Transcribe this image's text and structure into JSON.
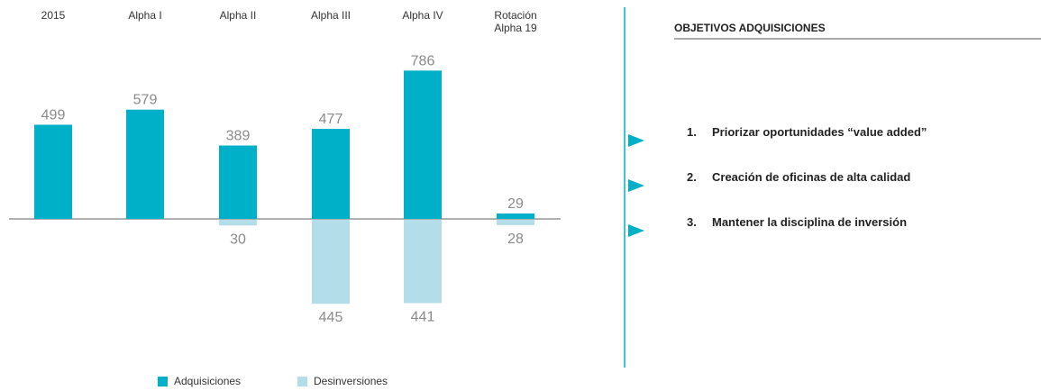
{
  "chart_data": {
    "type": "bar",
    "categories": [
      "2015",
      "Alpha I",
      "Alpha II",
      "Alpha III",
      "Alpha IV",
      "Rotación Alpha 19"
    ],
    "series": [
      {
        "name": "Adquisiciones",
        "color": "#00b0c8",
        "values": [
          499,
          579,
          389,
          477,
          786,
          29
        ]
      },
      {
        "name": "Desinversiones",
        "color": "#b3dde9",
        "values": [
          null,
          null,
          30,
          445,
          441,
          28
        ]
      }
    ]
  },
  "panel": {
    "title": "OBJETIVOS ADQUISICIONES",
    "items": [
      {
        "number": "1.",
        "text": "Priorizar oportunidades “value added”"
      },
      {
        "number": "2.",
        "text": "Creación de oficinas de alta calidad"
      },
      {
        "number": "3.",
        "text": "Mantener la disciplina de inversión"
      }
    ]
  }
}
